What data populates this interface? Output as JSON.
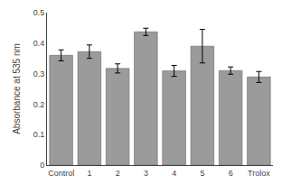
{
  "chart_data": {
    "type": "bar",
    "categories": [
      "Control",
      "1",
      "2",
      "3",
      "4",
      "5",
      "6",
      "Trolox"
    ],
    "values": [
      0.36,
      0.372,
      0.317,
      0.437,
      0.309,
      0.39,
      0.31,
      0.289
    ],
    "errors": [
      0.018,
      0.022,
      0.015,
      0.012,
      0.018,
      0.055,
      0.012,
      0.018
    ],
    "color": "#9b9b9b",
    "ylabel": "Absorbance at 535 nm",
    "ylim": [
      0,
      0.5
    ],
    "yticks": [
      0,
      0.1,
      0.2,
      0.3,
      0.4,
      0.5
    ],
    "grid": false
  }
}
